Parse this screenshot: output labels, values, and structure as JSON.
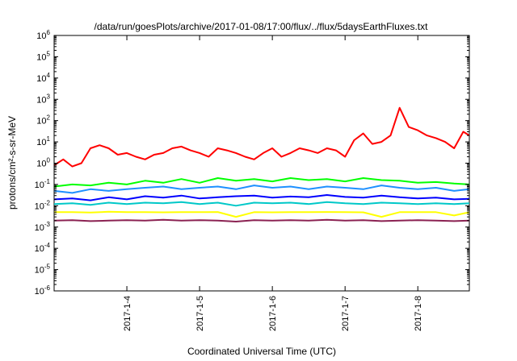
{
  "chart_data": {
    "type": "line",
    "title": "/data/run/goesPlots/archive/2017-01-08/17:00/flux/../flux/5daysEarthFluxes.txt",
    "xlabel": "Coordinated Universal Time (UTC)",
    "ylabel": "protons/cm²-s-sr-MeV",
    "yscale": "log",
    "ylim_exponents": [
      -6,
      6
    ],
    "ytick_labels": [
      "10-6",
      "10-5",
      "10-4",
      "10-3",
      "10-2",
      "10-1",
      "100",
      "101",
      "102",
      "103",
      "104",
      "105",
      "106"
    ],
    "x_range": [
      "2017-01-03 00:00",
      "2017-01-08 17:00"
    ],
    "xticks": [
      {
        "date": "2017-01-04 00:00",
        "label": "2017-1-4"
      },
      {
        "date": "2017-01-05 00:00",
        "label": "2017-1-5"
      },
      {
        "date": "2017-01-06 00:00",
        "label": "2017-1-6"
      },
      {
        "date": "2017-01-07 00:00",
        "label": "2017-1-7"
      },
      {
        "date": "2017-01-08 00:00",
        "label": "2017-1-8"
      }
    ],
    "grid": false,
    "legend": "none",
    "series": [
      {
        "color": "#ff0000",
        "x": [
          "2017-01-03 00:00",
          "2017-01-03 03:00",
          "2017-01-03 06:00",
          "2017-01-03 09:00",
          "2017-01-03 12:00",
          "2017-01-03 15:00",
          "2017-01-03 18:00",
          "2017-01-03 21:00",
          "2017-01-04 00:00",
          "2017-01-04 03:00",
          "2017-01-04 06:00",
          "2017-01-04 09:00",
          "2017-01-04 12:00",
          "2017-01-04 15:00",
          "2017-01-04 18:00",
          "2017-01-04 21:00",
          "2017-01-05 00:00",
          "2017-01-05 03:00",
          "2017-01-05 06:00",
          "2017-01-05 09:00",
          "2017-01-05 12:00",
          "2017-01-05 15:00",
          "2017-01-05 18:00",
          "2017-01-05 21:00",
          "2017-01-06 00:00",
          "2017-01-06 03:00",
          "2017-01-06 06:00",
          "2017-01-06 09:00",
          "2017-01-06 12:00",
          "2017-01-06 15:00",
          "2017-01-06 18:00",
          "2017-01-06 21:00",
          "2017-01-07 00:00",
          "2017-01-07 03:00",
          "2017-01-07 06:00",
          "2017-01-07 09:00",
          "2017-01-07 12:00",
          "2017-01-07 15:00",
          "2017-01-07 18:00",
          "2017-01-07 21:00",
          "2017-01-08 00:00",
          "2017-01-08 03:00",
          "2017-01-08 06:00",
          "2017-01-08 09:00",
          "2017-01-08 12:00",
          "2017-01-08 15:00",
          "2017-01-08 17:00"
        ],
        "y": [
          0.8,
          1.5,
          0.7,
          1.0,
          5,
          7,
          5,
          2.5,
          3,
          2,
          1.5,
          2.5,
          3,
          5,
          6,
          4,
          3,
          2,
          5,
          4,
          3,
          2,
          1.5,
          3,
          5,
          2,
          3,
          5,
          4,
          3,
          5,
          4,
          2,
          12,
          25,
          8,
          10,
          20,
          400,
          50,
          35,
          20,
          15,
          10,
          5,
          30,
          20
        ]
      },
      {
        "color": "#00ff00",
        "x": [
          "2017-01-03 00:00",
          "2017-01-03 06:00",
          "2017-01-03 12:00",
          "2017-01-03 18:00",
          "2017-01-04 00:00",
          "2017-01-04 06:00",
          "2017-01-04 12:00",
          "2017-01-04 18:00",
          "2017-01-05 00:00",
          "2017-01-05 06:00",
          "2017-01-05 12:00",
          "2017-01-05 18:00",
          "2017-01-06 00:00",
          "2017-01-06 06:00",
          "2017-01-06 12:00",
          "2017-01-06 18:00",
          "2017-01-07 00:00",
          "2017-01-07 06:00",
          "2017-01-07 12:00",
          "2017-01-07 18:00",
          "2017-01-08 00:00",
          "2017-01-08 06:00",
          "2017-01-08 12:00",
          "2017-01-08 17:00"
        ],
        "y": [
          0.08,
          0.1,
          0.09,
          0.12,
          0.1,
          0.15,
          0.12,
          0.18,
          0.12,
          0.2,
          0.15,
          0.18,
          0.14,
          0.2,
          0.16,
          0.18,
          0.14,
          0.2,
          0.16,
          0.15,
          0.12,
          0.13,
          0.11,
          0.1
        ]
      },
      {
        "color": "#1e90ff",
        "x": [
          "2017-01-03 00:00",
          "2017-01-03 06:00",
          "2017-01-03 12:00",
          "2017-01-03 18:00",
          "2017-01-04 00:00",
          "2017-01-04 06:00",
          "2017-01-04 12:00",
          "2017-01-04 18:00",
          "2017-01-05 00:00",
          "2017-01-05 06:00",
          "2017-01-05 12:00",
          "2017-01-05 18:00",
          "2017-01-06 00:00",
          "2017-01-06 06:00",
          "2017-01-06 12:00",
          "2017-01-06 18:00",
          "2017-01-07 00:00",
          "2017-01-07 06:00",
          "2017-01-07 12:00",
          "2017-01-07 18:00",
          "2017-01-08 00:00",
          "2017-01-08 06:00",
          "2017-01-08 12:00",
          "2017-01-08 17:00"
        ],
        "y": [
          0.05,
          0.04,
          0.06,
          0.05,
          0.06,
          0.07,
          0.08,
          0.06,
          0.07,
          0.08,
          0.06,
          0.09,
          0.07,
          0.08,
          0.06,
          0.08,
          0.07,
          0.06,
          0.09,
          0.07,
          0.06,
          0.07,
          0.05,
          0.06
        ]
      },
      {
        "color": "#0000ff",
        "x": [
          "2017-01-03 00:00",
          "2017-01-03 06:00",
          "2017-01-03 12:00",
          "2017-01-03 18:00",
          "2017-01-04 00:00",
          "2017-01-04 06:00",
          "2017-01-04 12:00",
          "2017-01-04 18:00",
          "2017-01-05 00:00",
          "2017-01-05 06:00",
          "2017-01-05 12:00",
          "2017-01-05 18:00",
          "2017-01-06 00:00",
          "2017-01-06 06:00",
          "2017-01-06 12:00",
          "2017-01-06 18:00",
          "2017-01-07 00:00",
          "2017-01-07 06:00",
          "2017-01-07 12:00",
          "2017-01-07 18:00",
          "2017-01-08 00:00",
          "2017-01-08 06:00",
          "2017-01-08 12:00",
          "2017-01-08 17:00"
        ],
        "y": [
          0.02,
          0.022,
          0.018,
          0.025,
          0.02,
          0.028,
          0.024,
          0.03,
          0.022,
          0.025,
          0.028,
          0.03,
          0.024,
          0.027,
          0.025,
          0.032,
          0.026,
          0.024,
          0.03,
          0.025,
          0.022,
          0.024,
          0.02,
          0.021
        ]
      },
      {
        "color": "#00c8c8",
        "x": [
          "2017-01-03 00:00",
          "2017-01-03 06:00",
          "2017-01-03 12:00",
          "2017-01-03 18:00",
          "2017-01-04 00:00",
          "2017-01-04 06:00",
          "2017-01-04 12:00",
          "2017-01-04 18:00",
          "2017-01-05 00:00",
          "2017-01-05 06:00",
          "2017-01-05 12:00",
          "2017-01-05 18:00",
          "2017-01-06 00:00",
          "2017-01-06 06:00",
          "2017-01-06 12:00",
          "2017-01-06 18:00",
          "2017-01-07 00:00",
          "2017-01-07 06:00",
          "2017-01-07 12:00",
          "2017-01-07 18:00",
          "2017-01-08 00:00",
          "2017-01-08 06:00",
          "2017-01-08 12:00",
          "2017-01-08 17:00"
        ],
        "y": [
          0.012,
          0.013,
          0.011,
          0.014,
          0.012,
          0.014,
          0.013,
          0.015,
          0.012,
          0.014,
          0.01,
          0.014,
          0.013,
          0.014,
          0.012,
          0.015,
          0.013,
          0.012,
          0.014,
          0.013,
          0.012,
          0.013,
          0.012,
          0.013
        ]
      },
      {
        "color": "#ffff00",
        "x": [
          "2017-01-03 00:00",
          "2017-01-03 06:00",
          "2017-01-03 12:00",
          "2017-01-03 18:00",
          "2017-01-04 00:00",
          "2017-01-04 06:00",
          "2017-01-04 12:00",
          "2017-01-04 18:00",
          "2017-01-05 00:00",
          "2017-01-05 06:00",
          "2017-01-05 12:00",
          "2017-01-05 18:00",
          "2017-01-06 00:00",
          "2017-01-06 06:00",
          "2017-01-06 12:00",
          "2017-01-06 18:00",
          "2017-01-07 00:00",
          "2017-01-07 06:00",
          "2017-01-07 12:00",
          "2017-01-07 18:00",
          "2017-01-08 00:00",
          "2017-01-08 06:00",
          "2017-01-08 12:00",
          "2017-01-08 17:00"
        ],
        "y": [
          0.005,
          0.005,
          0.0048,
          0.0052,
          0.005,
          0.005,
          0.0049,
          0.005,
          0.005,
          0.0051,
          0.003,
          0.005,
          0.0049,
          0.005,
          0.005,
          0.0051,
          0.005,
          0.0049,
          0.003,
          0.005,
          0.005,
          0.005,
          0.0035,
          0.005
        ]
      },
      {
        "color": "#8b2252",
        "x": [
          "2017-01-03 00:00",
          "2017-01-03 06:00",
          "2017-01-03 12:00",
          "2017-01-03 18:00",
          "2017-01-04 00:00",
          "2017-01-04 06:00",
          "2017-01-04 12:00",
          "2017-01-04 18:00",
          "2017-01-05 00:00",
          "2017-01-05 06:00",
          "2017-01-05 12:00",
          "2017-01-05 18:00",
          "2017-01-06 00:00",
          "2017-01-06 06:00",
          "2017-01-06 12:00",
          "2017-01-06 18:00",
          "2017-01-07 00:00",
          "2017-01-07 06:00",
          "2017-01-07 12:00",
          "2017-01-07 18:00",
          "2017-01-08 00:00",
          "2017-01-08 06:00",
          "2017-01-08 12:00",
          "2017-01-08 17:00"
        ],
        "y": [
          0.002,
          0.0021,
          0.0019,
          0.002,
          0.0021,
          0.002,
          0.0022,
          0.002,
          0.0021,
          0.002,
          0.0018,
          0.0021,
          0.002,
          0.0021,
          0.002,
          0.0022,
          0.002,
          0.0021,
          0.0019,
          0.002,
          0.0021,
          0.002,
          0.0019,
          0.002
        ]
      }
    ]
  }
}
